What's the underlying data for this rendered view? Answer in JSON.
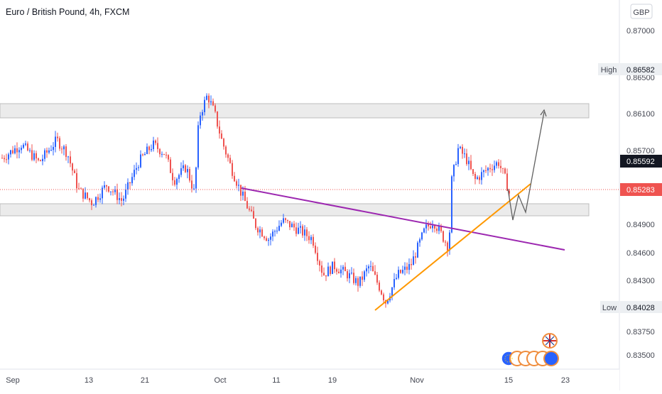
{
  "header": {
    "symbol_title": "Euro / British Pound, 4h, FXCM"
  },
  "price_axis": {
    "currency": "GBP",
    "ticks": [
      "0.87000",
      "0.86500",
      "0.86100",
      "0.85700",
      "0.84900",
      "0.84600",
      "0.84300",
      "0.83750",
      "0.83500"
    ],
    "high_label": "High",
    "high_value": "0.86582",
    "low_label": "Low",
    "low_value": "0.84028",
    "last_price": "0.85592",
    "current_price": "0.85283"
  },
  "time_axis": {
    "labels": [
      "Sep",
      "13",
      "21",
      "Oct",
      "11",
      "19",
      "Nov",
      "15",
      "23"
    ]
  },
  "colors": {
    "up": "#2962ff",
    "down": "#ef5350",
    "zone_fill": "#ebebeb",
    "zone_border": "#bdbdbd",
    "purple_line": "#9c27b0",
    "orange_line": "#ff9800",
    "arrow": "#616161",
    "price_line": "#ef5350",
    "last_label_bg": "#131722"
  },
  "chart_data": {
    "type": "candlestick",
    "title": "Euro / British Pound, 4h, FXCM",
    "y_unit": "GBP",
    "ylim": [
      0.8335,
      0.8722
    ],
    "price_ticks": [
      0.87,
      0.865,
      0.861,
      0.857,
      0.849,
      0.846,
      0.843,
      0.8375,
      0.835
    ],
    "x_ticks": [
      "Sep",
      "13",
      "21",
      "Oct",
      "11",
      "19",
      "Nov",
      "15",
      "23"
    ],
    "session_high": 0.86582,
    "session_low": 0.84028,
    "last_price": 0.85592,
    "current_price": 0.85283,
    "series_close_path": [
      [
        "Sep",
        0.8575
      ],
      [
        "13",
        0.8545
      ],
      [
        "21",
        0.8568
      ],
      [
        "Oct",
        0.8525
      ],
      [
        "11",
        0.8495
      ],
      [
        "19",
        0.845
      ],
      [
        "Nov",
        0.847
      ],
      [
        "15",
        0.8528
      ]
    ],
    "zones": [
      {
        "label": "resistance zone",
        "from": 0.8597,
        "to": 0.8612
      },
      {
        "label": "support zone",
        "from": 0.8495,
        "to": 0.851
      }
    ],
    "grid": false,
    "legend": "none"
  }
}
